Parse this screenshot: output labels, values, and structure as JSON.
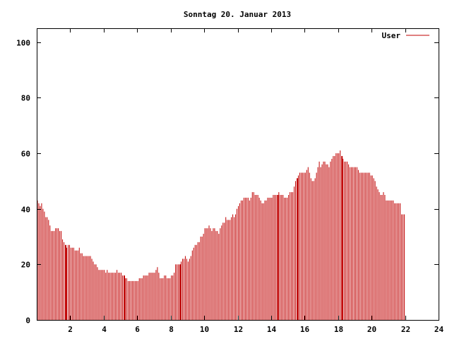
{
  "chart_data": {
    "type": "bar",
    "title": "Sonntag 20. Januar 2013",
    "xlabel": "",
    "ylabel": "",
    "xlim": [
      0,
      24
    ],
    "ylim": [
      0,
      105
    ],
    "x_ticks": [
      2,
      4,
      6,
      8,
      10,
      12,
      14,
      16,
      18,
      20,
      22,
      24
    ],
    "y_ticks": [
      0,
      20,
      40,
      60,
      80,
      100
    ],
    "grid": false,
    "legend_position": "top-right",
    "series_color": "#c00000",
    "series": [
      {
        "name": "User",
        "x_interval_minutes": 5,
        "values": [
          43,
          42,
          41,
          42,
          40,
          39,
          37,
          37,
          36,
          34,
          32,
          32,
          32,
          33,
          33,
          33,
          32,
          32,
          29,
          28,
          27,
          26,
          27,
          27,
          26,
          26,
          26,
          25,
          25,
          25,
          26,
          24,
          24,
          23,
          23,
          23,
          23,
          23,
          23,
          22,
          21,
          20,
          20,
          19,
          18,
          18,
          18,
          18,
          18,
          17,
          18,
          17,
          17,
          17,
          17,
          17,
          17,
          18,
          17,
          17,
          17,
          16,
          16,
          15,
          15,
          14,
          14,
          14,
          14,
          14,
          14,
          14,
          14,
          15,
          15,
          15,
          16,
          16,
          16,
          16,
          17,
          17,
          17,
          17,
          17,
          18,
          19,
          17,
          15,
          15,
          15,
          16,
          16,
          15,
          15,
          15,
          16,
          16,
          17,
          20,
          20,
          20,
          20,
          21,
          22,
          22,
          23,
          22,
          21,
          22,
          23,
          25,
          26,
          27,
          27,
          28,
          28,
          30,
          30,
          31,
          33,
          33,
          33,
          34,
          33,
          32,
          33,
          33,
          32,
          32,
          31,
          33,
          34,
          35,
          35,
          37,
          36,
          36,
          36,
          37,
          38,
          37,
          38,
          40,
          41,
          42,
          43,
          43,
          44,
          44,
          44,
          44,
          43,
          44,
          46,
          46,
          45,
          45,
          45,
          44,
          43,
          42,
          42,
          43,
          43,
          44,
          44,
          44,
          44,
          45,
          45,
          45,
          45,
          46,
          45,
          45,
          45,
          44,
          44,
          44,
          45,
          46,
          46,
          46,
          48,
          50,
          51,
          52,
          53,
          53,
          53,
          53,
          53,
          54,
          55,
          53,
          51,
          50,
          50,
          51,
          53,
          55,
          57,
          55,
          56,
          57,
          57,
          56,
          56,
          55,
          57,
          58,
          59,
          59,
          60,
          60,
          60,
          61,
          59,
          58,
          57,
          57,
          57,
          56,
          55,
          55,
          55,
          55,
          55,
          55,
          54,
          53,
          53,
          53,
          53,
          53,
          53,
          53,
          53,
          52,
          52,
          51,
          50,
          48,
          47,
          46,
          45,
          45,
          46,
          45,
          43,
          43,
          43,
          43,
          43,
          43,
          42,
          42,
          42,
          42,
          42,
          38,
          38,
          38
        ]
      }
    ],
    "highlighted_bars": [
      20,
      62,
      102,
      172,
      186,
      218,
      265
    ]
  }
}
